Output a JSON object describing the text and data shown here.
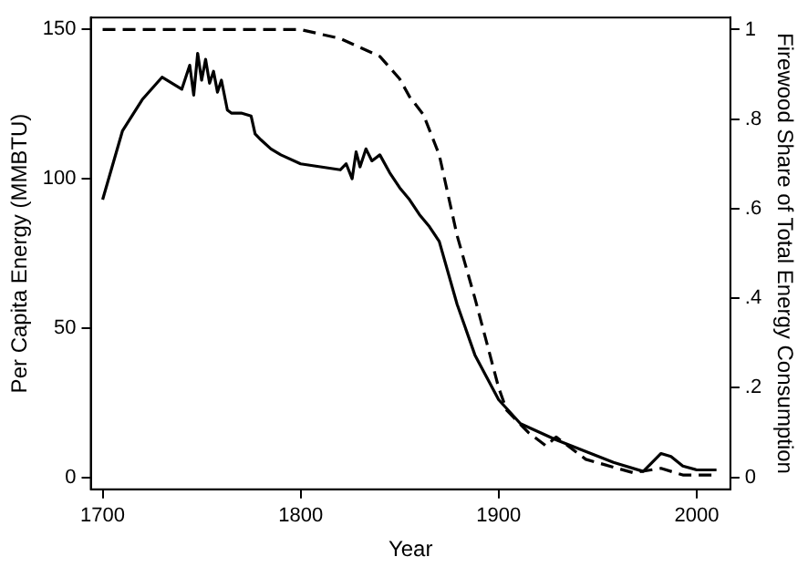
{
  "chart_data": {
    "type": "line",
    "xlabel": "Year",
    "ylabel": "Per Capita Energy (MMBTU)",
    "y2label": "Firewood Share of Total Energy Consumption",
    "xlim": [
      1694,
      2017
    ],
    "xticks": [
      1700,
      1800,
      1900,
      2000
    ],
    "ylim": [
      -4,
      154
    ],
    "yticks": [
      0,
      50,
      100,
      150
    ],
    "y2lim": [
      -0.027,
      1.027
    ],
    "y2ticks": [
      {
        "value": 0,
        "label": "0"
      },
      {
        "value": 0.2,
        "label": ".2"
      },
      {
        "value": 0.4,
        "label": ".4"
      },
      {
        "value": 0.6,
        "label": ".6"
      },
      {
        "value": 0.8,
        "label": ".8"
      },
      {
        "value": 1,
        "label": "1"
      }
    ],
    "grid": false,
    "legend": false,
    "series": [
      {
        "color": "#000000",
        "line_style": "solid",
        "axis": "y",
        "x": [
          1700,
          1710,
          1720,
          1730,
          1740,
          1744,
          1746,
          1748,
          1750,
          1752,
          1754,
          1756,
          1758,
          1760,
          1763,
          1765,
          1770,
          1775,
          1777,
          1780,
          1785,
          1790,
          1800,
          1810,
          1820,
          1823,
          1826,
          1828,
          1830,
          1833,
          1836,
          1840,
          1845,
          1850,
          1855,
          1860,
          1865,
          1870,
          1879,
          1888,
          1900,
          1911,
          1929,
          1958,
          1973,
          1982,
          1987,
          1993,
          2000,
          2010
        ],
        "values": [
          93,
          116,
          126.5,
          134,
          130,
          138,
          128,
          142,
          133,
          140,
          132,
          136,
          129,
          133,
          123,
          122,
          122,
          121,
          115,
          113,
          110,
          108,
          105,
          104,
          103,
          105,
          100,
          109,
          104,
          110,
          106,
          108,
          102,
          97,
          93,
          88,
          84,
          79,
          58,
          41,
          26,
          18,
          12.6,
          5,
          2,
          8,
          7,
          3.8,
          2.5,
          2.5
        ]
      },
      {
        "color": "#000000",
        "line_style": "dashed",
        "axis": "y2",
        "x": [
          1700,
          1800,
          1820,
          1840,
          1850,
          1855,
          1862,
          1870,
          1879,
          1888,
          1900,
          1904,
          1915,
          1924,
          1929,
          1944,
          1968,
          1982,
          1993,
          2010
        ],
        "values": [
          1,
          1,
          0.98,
          0.94,
          0.89,
          0.85,
          0.81,
          0.72,
          0.54,
          0.4,
          0.2,
          0.15,
          0.1,
          0.07,
          0.09,
          0.04,
          0.01,
          0.02,
          0.005,
          0.005
        ]
      }
    ]
  }
}
